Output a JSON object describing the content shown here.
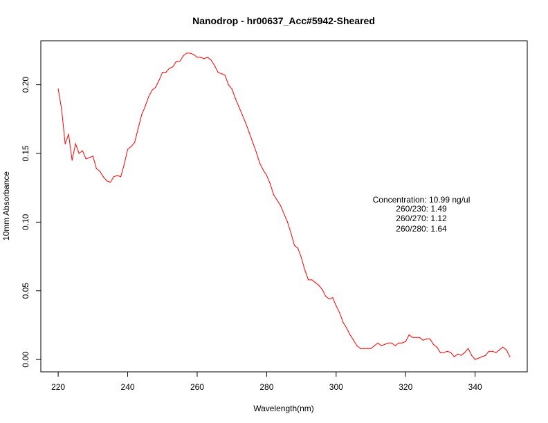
{
  "chart_data": {
    "type": "line",
    "title": "Nanodrop - hr00637_Acc#5942-Sheared",
    "xlabel": "Wavelength(nm)",
    "ylabel": "10mm Absorbance",
    "xlim": [
      215,
      355
    ],
    "ylim": [
      -0.009,
      0.232
    ],
    "xticks": [
      220,
      240,
      260,
      280,
      300,
      320,
      340
    ],
    "xtick_labels": [
      "220",
      "240",
      "260",
      "280",
      "300",
      "320",
      "340"
    ],
    "yticks": [
      0.0,
      0.05,
      0.1,
      0.15,
      0.2
    ],
    "ytick_labels": [
      "0.00",
      "0.05",
      "0.10",
      "0.15",
      "0.20"
    ],
    "grid": false,
    "series": [
      {
        "color": "#ff0000",
        "x": [
          220,
          221,
          222,
          223,
          224,
          225,
          226,
          227,
          228,
          229,
          230,
          231,
          232,
          233,
          234,
          235,
          236,
          237,
          238,
          239,
          240,
          241,
          242,
          243,
          244,
          245,
          246,
          247,
          248,
          249,
          250,
          251,
          252,
          253,
          254,
          255,
          256,
          257,
          258,
          259,
          260,
          261,
          262,
          263,
          264,
          265,
          266,
          267,
          268,
          269,
          270,
          271,
          272,
          273,
          274,
          275,
          276,
          277,
          278,
          279,
          280,
          281,
          282,
          283,
          284,
          285,
          286,
          287,
          288,
          289,
          290,
          291,
          292,
          293,
          294,
          295,
          296,
          297,
          298,
          299,
          300,
          301,
          302,
          303,
          304,
          305,
          306,
          307,
          308,
          309,
          310,
          311,
          312,
          313,
          314,
          315,
          316,
          317,
          318,
          319,
          320,
          321,
          322,
          323,
          324,
          325,
          326,
          327,
          328,
          329,
          330,
          331,
          332,
          333,
          334,
          335,
          336,
          337,
          338,
          339,
          340,
          341,
          342,
          343,
          344,
          345,
          346,
          347,
          348,
          349,
          350
        ],
        "y": [
          0.197,
          0.182,
          0.157,
          0.164,
          0.145,
          0.157,
          0.15,
          0.152,
          0.146,
          0.147,
          0.148,
          0.139,
          0.137,
          0.133,
          0.13,
          0.129,
          0.133,
          0.134,
          0.133,
          0.142,
          0.153,
          0.155,
          0.158,
          0.168,
          0.178,
          0.184,
          0.191,
          0.196,
          0.198,
          0.203,
          0.209,
          0.209,
          0.212,
          0.213,
          0.217,
          0.217,
          0.221,
          0.223,
          0.223,
          0.222,
          0.22,
          0.22,
          0.219,
          0.22,
          0.218,
          0.214,
          0.209,
          0.208,
          0.207,
          0.2,
          0.197,
          0.19,
          0.184,
          0.178,
          0.172,
          0.165,
          0.158,
          0.151,
          0.143,
          0.138,
          0.134,
          0.128,
          0.12,
          0.116,
          0.112,
          0.106,
          0.1,
          0.092,
          0.083,
          0.081,
          0.074,
          0.065,
          0.058,
          0.058,
          0.056,
          0.054,
          0.051,
          0.046,
          0.044,
          0.045,
          0.039,
          0.034,
          0.027,
          0.023,
          0.018,
          0.014,
          0.01,
          0.008,
          0.008,
          0.008,
          0.008,
          0.01,
          0.012,
          0.01,
          0.011,
          0.012,
          0.012,
          0.01,
          0.012,
          0.012,
          0.013,
          0.018,
          0.016,
          0.016,
          0.016,
          0.014,
          0.015,
          0.015,
          0.011,
          0.009,
          0.005,
          0.005,
          0.006,
          0.005,
          0.002,
          0.004,
          0.003,
          0.005,
          0.008,
          0.003,
          0.0,
          0.001,
          0.002,
          0.003,
          0.006,
          0.006,
          0.005,
          0.007,
          0.009,
          0.007,
          0.002
        ]
      }
    ],
    "annotation": {
      "lines": [
        "Concentration: 10.99 ng/ul",
        "260/230: 1.49",
        "260/270: 1.12",
        "260/280: 1.64"
      ]
    }
  }
}
